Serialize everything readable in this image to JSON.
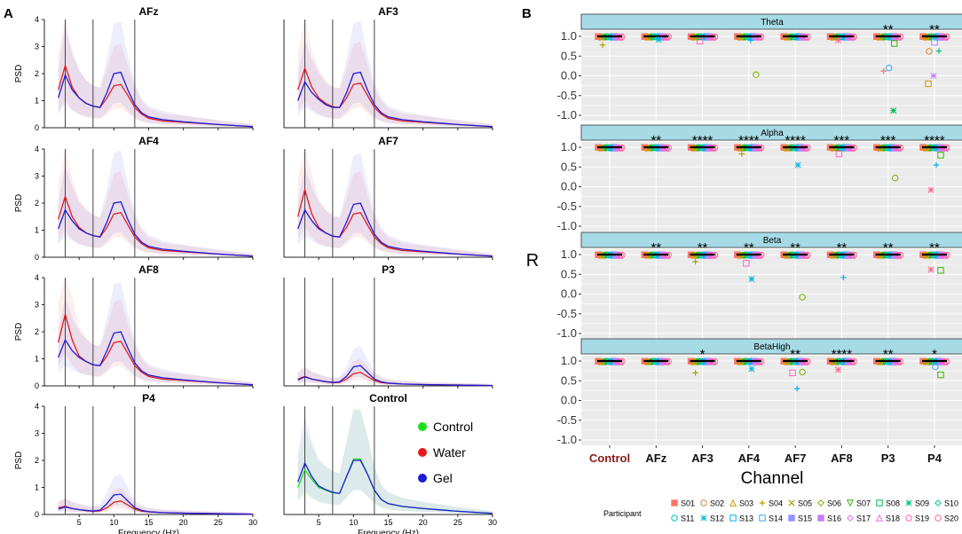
{
  "panel_a": {
    "label": "A",
    "xlabel": "Frequency (Hz)",
    "ylabel": "PSD",
    "xticks": [
      "5",
      "10",
      "15",
      "20",
      "25",
      "30"
    ],
    "yticks": [
      "0",
      "1",
      "2",
      "3",
      "4"
    ],
    "legend": [
      {
        "label": "Control",
        "color": "#1adf1a"
      },
      {
        "label": "Water",
        "color": "#e21b1b"
      },
      {
        "label": "Gel",
        "color": "#1b1bd6"
      }
    ]
  },
  "panel_b": {
    "label": "B",
    "xlabel": "Channel",
    "ylabel": "R",
    "yticks": [
      "1.0",
      "0.5",
      "0.0",
      "-0.5",
      "-1.0"
    ],
    "channels": [
      "Control",
      "AFz",
      "AF3",
      "AF4",
      "AF7",
      "AF8",
      "P3",
      "P4"
    ],
    "legend_title": "Participant",
    "participants": [
      "S01",
      "S02",
      "S03",
      "S04",
      "S05",
      "S06",
      "S07",
      "S08",
      "S09",
      "S10",
      "S11",
      "S12",
      "S13",
      "S14",
      "S15",
      "S16",
      "S17",
      "S18",
      "S19",
      "S20"
    ]
  },
  "chart_data": [
    {
      "type": "line",
      "title": "AFz",
      "xlabel": "Frequency (Hz)",
      "ylabel": "PSD",
      "xlim": [
        0,
        30
      ],
      "ylim": [
        0,
        4
      ],
      "vlines": [
        3,
        7,
        13
      ],
      "series": [
        {
          "name": "Water",
          "x": [
            2,
            3,
            4,
            5,
            6,
            7,
            8,
            9,
            10,
            11,
            12,
            13,
            14,
            15,
            17,
            20,
            25,
            30
          ],
          "y": [
            1.4,
            2.3,
            1.5,
            1.1,
            0.9,
            0.8,
            0.75,
            1.1,
            1.55,
            1.6,
            1.2,
            0.75,
            0.5,
            0.35,
            0.25,
            0.2,
            0.12,
            0.04
          ]
        },
        {
          "name": "Gel",
          "x": [
            2,
            3,
            4,
            5,
            6,
            7,
            8,
            9,
            10,
            11,
            12,
            13,
            14,
            15,
            17,
            20,
            25,
            30
          ],
          "y": [
            1.1,
            1.95,
            1.4,
            1.1,
            0.9,
            0.8,
            0.75,
            1.3,
            2.0,
            2.05,
            1.4,
            0.85,
            0.55,
            0.4,
            0.3,
            0.22,
            0.12,
            0.04
          ]
        }
      ]
    },
    {
      "type": "line",
      "title": "AF3",
      "xlabel": "Frequency (Hz)",
      "ylabel": "PSD",
      "xlim": [
        0,
        30
      ],
      "ylim": [
        0,
        4
      ],
      "vlines": [
        3,
        7,
        13
      ],
      "series": [
        {
          "name": "Water",
          "x": [
            2,
            3,
            4,
            5,
            6,
            7,
            8,
            9,
            10,
            11,
            12,
            13,
            14,
            15,
            17,
            20,
            25,
            30
          ],
          "y": [
            1.4,
            2.2,
            1.5,
            1.1,
            0.9,
            0.78,
            0.75,
            1.1,
            1.6,
            1.65,
            1.2,
            0.75,
            0.5,
            0.35,
            0.25,
            0.2,
            0.12,
            0.04
          ]
        },
        {
          "name": "Gel",
          "x": [
            2,
            3,
            4,
            5,
            6,
            7,
            8,
            9,
            10,
            11,
            12,
            13,
            14,
            15,
            17,
            20,
            25,
            30
          ],
          "y": [
            1.0,
            1.7,
            1.3,
            1.05,
            0.85,
            0.75,
            0.75,
            1.3,
            2.0,
            2.05,
            1.4,
            0.85,
            0.55,
            0.4,
            0.3,
            0.22,
            0.12,
            0.04
          ]
        }
      ]
    },
    {
      "type": "line",
      "title": "AF4",
      "xlabel": "Frequency (Hz)",
      "ylabel": "PSD",
      "xlim": [
        0,
        30
      ],
      "ylim": [
        0,
        4
      ],
      "vlines": [
        3,
        7,
        13
      ],
      "series": [
        {
          "name": "Water",
          "x": [
            2,
            3,
            4,
            5,
            6,
            7,
            8,
            9,
            10,
            11,
            12,
            13,
            14,
            15,
            17,
            20,
            25,
            30
          ],
          "y": [
            1.4,
            2.25,
            1.5,
            1.1,
            0.9,
            0.8,
            0.75,
            1.1,
            1.6,
            1.65,
            1.2,
            0.75,
            0.5,
            0.35,
            0.25,
            0.2,
            0.12,
            0.04
          ]
        },
        {
          "name": "Gel",
          "x": [
            2,
            3,
            4,
            5,
            6,
            7,
            8,
            9,
            10,
            11,
            12,
            13,
            14,
            15,
            17,
            20,
            25,
            30
          ],
          "y": [
            1.05,
            1.75,
            1.35,
            1.05,
            0.9,
            0.8,
            0.75,
            1.3,
            2.0,
            2.05,
            1.4,
            0.85,
            0.55,
            0.4,
            0.3,
            0.22,
            0.12,
            0.04
          ]
        }
      ]
    },
    {
      "type": "line",
      "title": "AF7",
      "xlabel": "Frequency (Hz)",
      "ylabel": "PSD",
      "xlim": [
        0,
        30
      ],
      "ylim": [
        0,
        4
      ],
      "vlines": [
        3,
        7,
        13
      ],
      "series": [
        {
          "name": "Water",
          "x": [
            2,
            3,
            4,
            5,
            6,
            7,
            8,
            9,
            10,
            11,
            12,
            13,
            14,
            15,
            17,
            20,
            25,
            30
          ],
          "y": [
            1.5,
            2.5,
            1.6,
            1.1,
            0.9,
            0.78,
            0.75,
            1.1,
            1.6,
            1.65,
            1.2,
            0.75,
            0.5,
            0.35,
            0.25,
            0.2,
            0.12,
            0.04
          ]
        },
        {
          "name": "Gel",
          "x": [
            2,
            3,
            4,
            5,
            6,
            7,
            8,
            9,
            10,
            11,
            12,
            13,
            14,
            15,
            17,
            20,
            25,
            30
          ],
          "y": [
            1.05,
            1.75,
            1.35,
            1.05,
            0.9,
            0.78,
            0.75,
            1.3,
            1.95,
            2.0,
            1.4,
            0.85,
            0.55,
            0.4,
            0.3,
            0.22,
            0.12,
            0.04
          ]
        }
      ]
    },
    {
      "type": "line",
      "title": "AF8",
      "xlabel": "Frequency (Hz)",
      "ylabel": "PSD",
      "xlim": [
        0,
        30
      ],
      "ylim": [
        0,
        4
      ],
      "vlines": [
        3,
        7,
        13
      ],
      "series": [
        {
          "name": "Water",
          "x": [
            2,
            3,
            4,
            5,
            6,
            7,
            8,
            9,
            10,
            11,
            12,
            13,
            14,
            15,
            17,
            20,
            25,
            30
          ],
          "y": [
            1.6,
            2.65,
            1.7,
            1.1,
            0.9,
            0.78,
            0.75,
            1.1,
            1.6,
            1.65,
            1.2,
            0.75,
            0.5,
            0.35,
            0.25,
            0.2,
            0.12,
            0.04
          ]
        },
        {
          "name": "Gel",
          "x": [
            2,
            3,
            4,
            5,
            6,
            7,
            8,
            9,
            10,
            11,
            12,
            13,
            14,
            15,
            17,
            20,
            25,
            30
          ],
          "y": [
            1.05,
            1.7,
            1.3,
            1.05,
            0.9,
            0.78,
            0.75,
            1.3,
            1.95,
            2.0,
            1.4,
            0.85,
            0.55,
            0.4,
            0.3,
            0.22,
            0.12,
            0.04
          ]
        }
      ]
    },
    {
      "type": "line",
      "title": "P3",
      "xlabel": "Frequency (Hz)",
      "ylabel": "PSD",
      "xlim": [
        0,
        30
      ],
      "ylim": [
        0,
        4
      ],
      "vlines": [
        3,
        7,
        13
      ],
      "series": [
        {
          "name": "Water",
          "x": [
            2,
            3,
            4,
            5,
            6,
            7,
            8,
            9,
            10,
            11,
            12,
            13,
            14,
            15,
            17,
            20,
            25,
            30
          ],
          "y": [
            0.25,
            0.35,
            0.25,
            0.2,
            0.15,
            0.12,
            0.13,
            0.25,
            0.45,
            0.5,
            0.35,
            0.2,
            0.12,
            0.1,
            0.07,
            0.05,
            0.03,
            0.01
          ]
        },
        {
          "name": "Gel",
          "x": [
            2,
            3,
            4,
            5,
            6,
            7,
            8,
            9,
            10,
            11,
            12,
            13,
            14,
            15,
            17,
            20,
            25,
            30
          ],
          "y": [
            0.22,
            0.33,
            0.25,
            0.2,
            0.16,
            0.13,
            0.15,
            0.35,
            0.7,
            0.75,
            0.5,
            0.25,
            0.15,
            0.1,
            0.07,
            0.05,
            0.03,
            0.01
          ]
        }
      ]
    },
    {
      "type": "line",
      "title": "P4",
      "xlabel": "Frequency (Hz)",
      "ylabel": "PSD",
      "xlim": [
        0,
        30
      ],
      "ylim": [
        0,
        4
      ],
      "vlines": [
        3,
        7,
        13
      ],
      "series": [
        {
          "name": "Water",
          "x": [
            2,
            3,
            4,
            5,
            6,
            7,
            8,
            9,
            10,
            11,
            12,
            13,
            14,
            15,
            17,
            20,
            25,
            30
          ],
          "y": [
            0.25,
            0.3,
            0.22,
            0.18,
            0.14,
            0.12,
            0.13,
            0.25,
            0.45,
            0.5,
            0.35,
            0.2,
            0.12,
            0.1,
            0.07,
            0.05,
            0.03,
            0.01
          ]
        },
        {
          "name": "Gel",
          "x": [
            2,
            3,
            4,
            5,
            6,
            7,
            8,
            9,
            10,
            11,
            12,
            13,
            14,
            15,
            17,
            20,
            25,
            30
          ],
          "y": [
            0.2,
            0.28,
            0.22,
            0.18,
            0.15,
            0.13,
            0.16,
            0.4,
            0.72,
            0.75,
            0.5,
            0.25,
            0.15,
            0.1,
            0.07,
            0.05,
            0.03,
            0.01
          ]
        }
      ]
    },
    {
      "type": "line",
      "title": "Control",
      "xlabel": "Frequency (Hz)",
      "ylabel": "PSD",
      "xlim": [
        0,
        30
      ],
      "ylim": [
        0,
        4
      ],
      "vlines": [
        3,
        7,
        13
      ],
      "series": [
        {
          "name": "Control",
          "x": [
            2,
            3,
            4,
            5,
            6,
            7,
            8,
            9,
            10,
            11,
            12,
            13,
            14,
            15,
            17,
            20,
            25,
            30
          ],
          "y": [
            1.0,
            1.65,
            1.3,
            1.0,
            0.9,
            0.8,
            0.78,
            1.4,
            2.05,
            2.05,
            1.5,
            0.9,
            0.55,
            0.4,
            0.3,
            0.22,
            0.12,
            0.04
          ]
        },
        {
          "name": "Gel",
          "x": [
            2,
            3,
            4,
            5,
            6,
            7,
            8,
            9,
            10,
            11,
            12,
            13,
            14,
            15,
            17,
            20,
            25,
            30
          ],
          "y": [
            1.2,
            1.9,
            1.4,
            1.05,
            0.92,
            0.82,
            0.78,
            1.4,
            2.0,
            2.0,
            1.5,
            0.9,
            0.55,
            0.4,
            0.3,
            0.22,
            0.12,
            0.04
          ]
        }
      ]
    },
    {
      "type": "scatter",
      "title": "Theta",
      "xlabel": "Channel",
      "ylabel": "R",
      "ylim": [
        -1.0,
        1.0
      ],
      "categories": [
        "Control",
        "AFz",
        "AF3",
        "AF4",
        "AF7",
        "AF8",
        "P3",
        "P4"
      ],
      "significance": [
        "",
        "",
        "",
        "",
        "",
        "",
        "**",
        "**"
      ],
      "outliers": [
        {
          "channel": "Control",
          "r": 0.78
        },
        {
          "channel": "AFz",
          "r": 0.92
        },
        {
          "channel": "AF3",
          "r": 0.88
        },
        {
          "channel": "AF4",
          "r": 0.03
        },
        {
          "channel": "AF4",
          "r": 0.9
        },
        {
          "channel": "AF8",
          "r": 0.9
        },
        {
          "channel": "P3",
          "r": 0.82
        },
        {
          "channel": "P3",
          "r": 0.2
        },
        {
          "channel": "P3",
          "r": 0.12
        },
        {
          "channel": "P3",
          "r": -0.88
        },
        {
          "channel": "P4",
          "r": 0.85
        },
        {
          "channel": "P4",
          "r": 0.62
        },
        {
          "channel": "P4",
          "r": 0.63
        },
        {
          "channel": "P4",
          "r": 0.0
        },
        {
          "channel": "P4",
          "r": -0.2
        }
      ]
    },
    {
      "type": "scatter",
      "title": "Alpha",
      "xlabel": "Channel",
      "ylabel": "R",
      "ylim": [
        -1.0,
        1.0
      ],
      "categories": [
        "Control",
        "AFz",
        "AF3",
        "AF4",
        "AF7",
        "AF8",
        "P3",
        "P4"
      ],
      "significance": [
        "",
        "**",
        "****",
        "****",
        "****",
        "***",
        "***",
        "****"
      ],
      "outliers": [
        {
          "channel": "AF4",
          "r": 0.83
        },
        {
          "channel": "AF7",
          "r": 0.55
        },
        {
          "channel": "AF8",
          "r": 0.83
        },
        {
          "channel": "P3",
          "r": 0.22
        },
        {
          "channel": "P4",
          "r": 0.55
        },
        {
          "channel": "P4",
          "r": -0.08
        },
        {
          "channel": "P4",
          "r": 0.8
        }
      ]
    },
    {
      "type": "scatter",
      "title": "Beta",
      "xlabel": "Channel",
      "ylabel": "R",
      "ylim": [
        -1.0,
        1.0
      ],
      "categories": [
        "Control",
        "AFz",
        "AF3",
        "AF4",
        "AF7",
        "AF8",
        "P3",
        "P4"
      ],
      "significance": [
        "",
        "**",
        "**",
        "**",
        "**",
        "**",
        "**",
        "**"
      ],
      "outliers": [
        {
          "channel": "AF3",
          "r": 0.82
        },
        {
          "channel": "AF4",
          "r": 0.38
        },
        {
          "channel": "AF4",
          "r": 0.78
        },
        {
          "channel": "AF7",
          "r": -0.08
        },
        {
          "channel": "AF8",
          "r": 0.42
        },
        {
          "channel": "P4",
          "r": 0.62
        },
        {
          "channel": "P4",
          "r": 0.6
        }
      ]
    },
    {
      "type": "scatter",
      "title": "BetaHigh",
      "xlabel": "Channel",
      "ylabel": "R",
      "ylim": [
        -1.0,
        1.0
      ],
      "categories": [
        "Control",
        "AFz",
        "AF3",
        "AF4",
        "AF7",
        "AF8",
        "P3",
        "P4"
      ],
      "significance": [
        "",
        "",
        "*",
        "",
        "**",
        "****",
        "**",
        "*"
      ],
      "outliers": [
        {
          "channel": "AF3",
          "r": 0.7
        },
        {
          "channel": "AF4",
          "r": 0.8
        },
        {
          "channel": "AF7",
          "r": 0.7
        },
        {
          "channel": "AF7",
          "r": 0.72
        },
        {
          "channel": "AF7",
          "r": 0.3
        },
        {
          "channel": "AF8",
          "r": 0.78
        },
        {
          "channel": "P4",
          "r": 0.65
        },
        {
          "channel": "P4",
          "r": 0.85
        }
      ]
    }
  ]
}
